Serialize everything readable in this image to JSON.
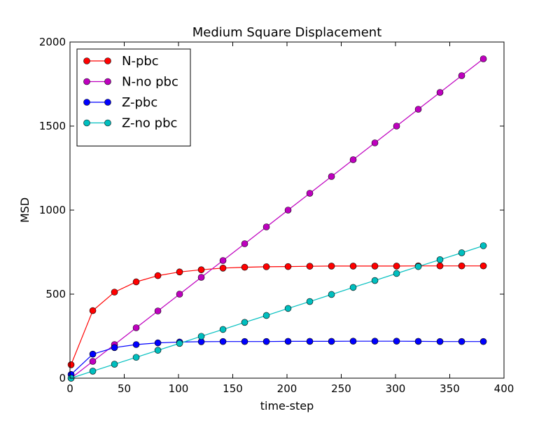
{
  "chart_data": {
    "type": "line",
    "title": "Medium Square Displacement",
    "xlabel": "time-step",
    "ylabel": "MSD",
    "xlim": [
      0,
      400
    ],
    "ylim": [
      0,
      2000
    ],
    "xticks": [
      0,
      50,
      100,
      150,
      200,
      250,
      300,
      350,
      400
    ],
    "yticks": [
      0,
      500,
      1000,
      1500,
      2000
    ],
    "grid": false,
    "legend_position": "top-left",
    "x": [
      1,
      21,
      41,
      61,
      81,
      101,
      121,
      141,
      161,
      181,
      201,
      221,
      241,
      261,
      281,
      301,
      321,
      341,
      361,
      381
    ],
    "series": [
      {
        "name": "N-pbc",
        "color": "#ff0000",
        "values": [
          80,
          402,
          512,
          573,
          610,
          632,
          645,
          655,
          660,
          663,
          664,
          666,
          667,
          667,
          667,
          667,
          668,
          668,
          668,
          668
        ]
      },
      {
        "name": "N-no pbc",
        "color": "#bf00bf",
        "values": [
          0,
          100,
          200,
          300,
          400,
          500,
          600,
          700,
          800,
          900,
          1000,
          1100,
          1200,
          1300,
          1400,
          1500,
          1600,
          1700,
          1800,
          1900
        ]
      },
      {
        "name": "Z-pbc",
        "color": "#0000ff",
        "values": [
          22,
          143,
          182,
          200,
          210,
          215,
          217,
          218,
          218,
          218,
          219,
          219,
          219,
          220,
          220,
          220,
          219,
          218,
          218,
          218
        ]
      },
      {
        "name": "Z-no pbc",
        "color": "#00bfbf",
        "values": [
          0,
          42,
          83,
          124,
          166,
          207,
          249,
          290,
          332,
          373,
          415,
          456,
          498,
          540,
          581,
          623,
          664,
          705,
          746,
          788
        ]
      }
    ]
  }
}
